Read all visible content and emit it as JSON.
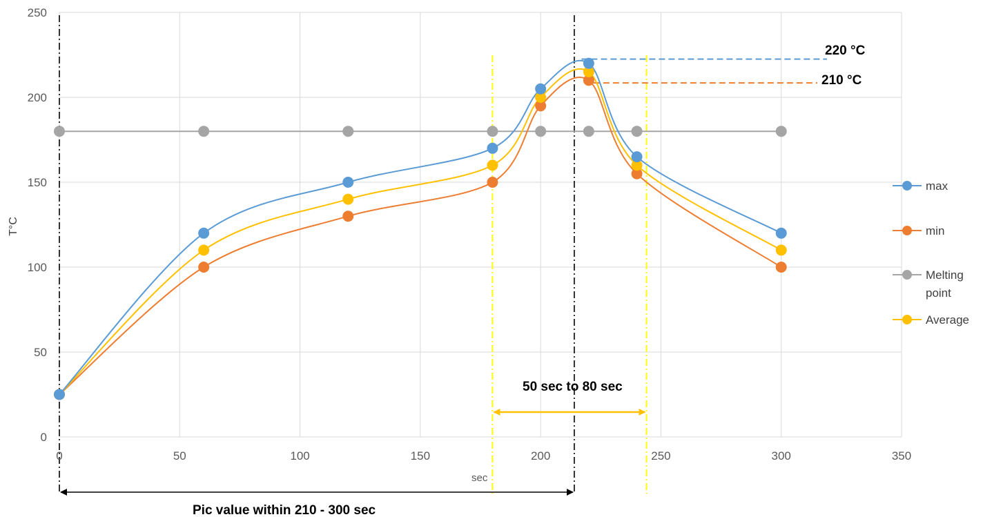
{
  "chart_data": {
    "type": "scatter",
    "xlabel": "sec",
    "ylabel": "T°C",
    "xlim": [
      0,
      350
    ],
    "ylim": [
      0,
      250
    ],
    "x_ticks": [
      "0",
      "50",
      "100",
      "150",
      "200",
      "250",
      "300",
      "350"
    ],
    "y_ticks": [
      "0",
      "50",
      "100",
      "150",
      "200",
      "250"
    ],
    "grid": true,
    "smooth_lines": true,
    "legend_position": "right",
    "series": [
      {
        "name": "max",
        "color": "#5B9BD5",
        "x": [
          0,
          60,
          120,
          180,
          200,
          220,
          240,
          300
        ],
        "y": [
          25,
          120,
          150,
          170,
          205,
          220,
          165,
          120
        ]
      },
      {
        "name": "min",
        "color": "#ED7D31",
        "x": [
          0,
          60,
          120,
          180,
          200,
          220,
          240,
          300
        ],
        "y": [
          25,
          100,
          130,
          150,
          195,
          210,
          155,
          100
        ]
      },
      {
        "name": "Melting point",
        "color": "#A5A5A5",
        "x": [
          0,
          60,
          120,
          180,
          200,
          220,
          240,
          300
        ],
        "y": [
          180,
          180,
          180,
          180,
          180,
          180,
          180,
          180
        ]
      },
      {
        "name": "Average",
        "color": "#FFC000",
        "x": [
          0,
          60,
          120,
          180,
          200,
          220,
          240,
          300
        ],
        "y": [
          25,
          110,
          140,
          160,
          200,
          215,
          160,
          110
        ]
      }
    ],
    "legend_items": [
      {
        "label": "max",
        "color": "#5B9BD5"
      },
      {
        "label": "min",
        "color": "#ED7D31"
      },
      {
        "label_line1": "Melting",
        "label_line2": "point",
        "color": "#A5A5A5"
      },
      {
        "label": "Average",
        "color": "#FFC000"
      }
    ],
    "annotations": {
      "max_label": "220 °C",
      "min_label": "210 °C",
      "window_label": "50 sec to 80 sec",
      "peak_label": "Pic value within 210 - 300 sec",
      "max_value": 222.5,
      "min_value": 208.5,
      "max_line_end_x": 319,
      "min_line_end_x": 315,
      "peak_start_x": 0,
      "peak_end_x": 214,
      "window_start_x": 180,
      "window_end_x": 244,
      "black_line_color": "#000000",
      "yellow_line_color": "#FFFF00",
      "arrow_color": "#FFC000"
    }
  }
}
